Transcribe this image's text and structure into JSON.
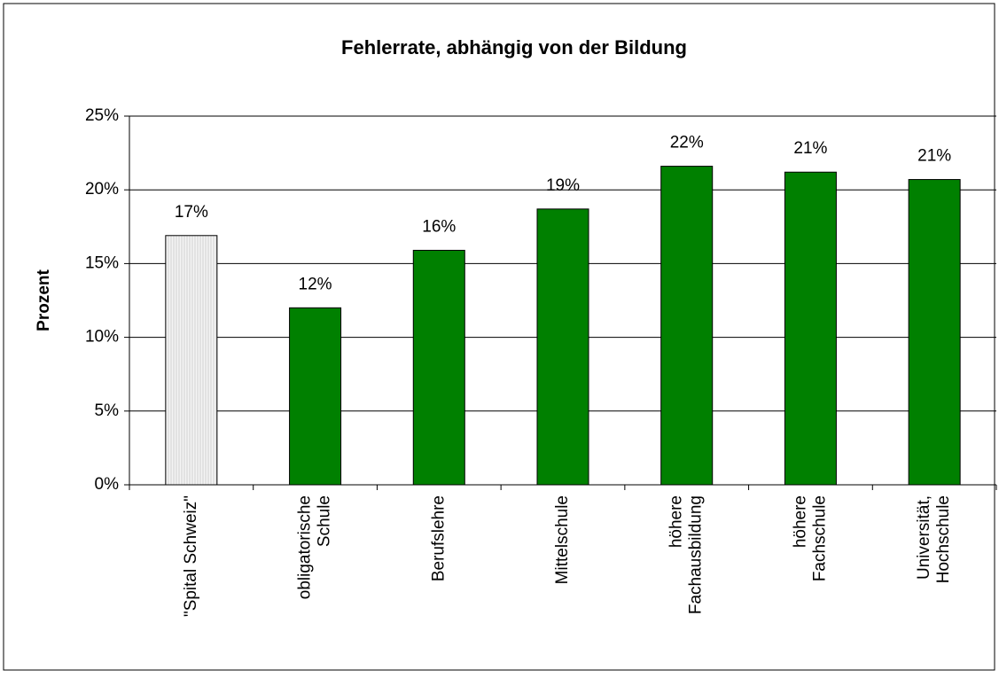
{
  "chart_data": {
    "type": "bar",
    "title": "Fehlerrate, abhängig von der Bildung",
    "y_label": "Prozent",
    "categories": [
      "\"Spital Schweiz\"",
      "obligatorische\nSchule",
      "Berufslehre",
      "Mittelschule",
      "höhere\nFachausbildung",
      "höhere\nFachschule",
      "Universität,\nHochschule"
    ],
    "values": [
      16.9,
      12.0,
      15.9,
      18.7,
      21.6,
      21.2,
      20.7
    ],
    "value_labels": [
      "17%",
      "12%",
      "16%",
      "19%",
      "22%",
      "21%",
      "21%"
    ],
    "colors": [
      "#e8e8e8",
      "#008000",
      "#008000",
      "#008000",
      "#008000",
      "#008000",
      "#008000"
    ],
    "ylim": [
      0,
      25
    ],
    "yticks": [
      {
        "value": 0,
        "label": "0%"
      },
      {
        "value": 5,
        "label": "5%"
      },
      {
        "value": 10,
        "label": "10%"
      },
      {
        "value": 15,
        "label": "15%"
      },
      {
        "value": 20,
        "label": "20%"
      },
      {
        "value": 25,
        "label": "25%"
      }
    ],
    "grid": true
  }
}
